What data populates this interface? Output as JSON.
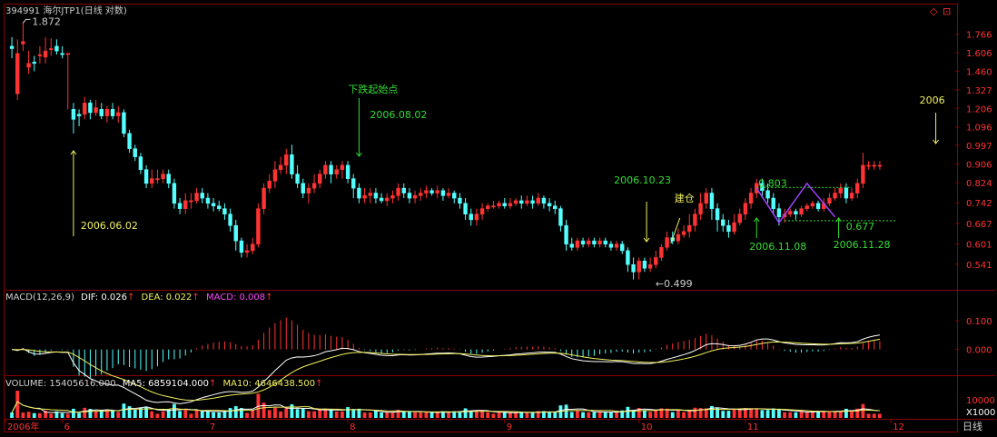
{
  "chart_data": [
    {
      "type": "candlestick",
      "title": "394991 海尔JTP1(日线 对数)",
      "y_scale": "log",
      "ylim": [
        0.49,
        1.9
      ],
      "y_ticks": [
        "1.766",
        "1.606",
        "1.460",
        "1.327",
        "1.206",
        "1.096",
        "0.997",
        "0.906",
        "0.824",
        "0.742",
        "0.667",
        "0.601",
        "0.541"
      ],
      "y_tick_values": [
        1.766,
        1.606,
        1.46,
        1.327,
        1.206,
        1.096,
        0.997,
        0.906,
        0.824,
        0.742,
        0.667,
        0.601,
        0.541
      ],
      "x_labels": [
        "2006年",
        "6",
        "7",
        "8",
        "9",
        "10",
        "11",
        "12"
      ],
      "x_label_index": [
        0,
        9,
        35,
        60,
        88,
        112,
        131,
        157
      ],
      "n_bars": 168,
      "candles": [
        [
          1.66,
          1.64,
          1.74,
          1.56
        ],
        [
          1.3,
          1.6,
          1.72,
          1.26
        ],
        [
          1.68,
          1.7,
          1.88,
          1.62
        ],
        [
          1.49,
          1.52,
          1.62,
          1.44
        ],
        [
          1.53,
          1.52,
          1.58,
          1.46
        ],
        [
          1.58,
          1.59,
          1.66,
          1.52
        ],
        [
          1.57,
          1.62,
          1.74,
          1.52
        ],
        [
          1.64,
          1.64,
          1.73,
          1.58
        ],
        [
          1.66,
          1.62,
          1.72,
          1.59
        ],
        [
          1.6,
          1.59,
          1.66,
          1.56
        ],
        [
          1.6,
          1.6,
          1.6,
          1.2
        ],
        [
          1.2,
          1.14,
          1.24,
          1.06
        ],
        [
          1.17,
          1.16,
          1.2,
          1.1
        ],
        [
          1.17,
          1.24,
          1.28,
          1.14
        ],
        [
          1.24,
          1.18,
          1.26,
          1.14
        ],
        [
          1.18,
          1.21,
          1.26,
          1.16
        ],
        [
          1.2,
          1.16,
          1.24,
          1.14
        ],
        [
          1.16,
          1.2,
          1.22,
          1.12
        ],
        [
          1.2,
          1.16,
          1.24,
          1.14
        ],
        [
          1.16,
          1.18,
          1.22,
          1.12
        ],
        [
          1.18,
          1.06,
          1.2,
          1.04
        ],
        [
          1.06,
          0.98,
          1.08,
          0.96
        ],
        [
          0.98,
          0.94,
          1.0,
          0.92
        ],
        [
          0.94,
          0.88,
          0.96,
          0.86
        ],
        [
          0.88,
          0.82,
          0.9,
          0.8
        ],
        [
          0.82,
          0.84,
          0.88,
          0.8
        ],
        [
          0.84,
          0.84,
          0.88,
          0.82
        ],
        [
          0.84,
          0.86,
          0.88,
          0.82
        ],
        [
          0.86,
          0.82,
          0.88,
          0.8
        ],
        [
          0.82,
          0.74,
          0.84,
          0.72
        ],
        [
          0.74,
          0.72,
          0.76,
          0.7
        ],
        [
          0.72,
          0.75,
          0.78,
          0.7
        ],
        [
          0.75,
          0.75,
          0.78,
          0.72
        ],
        [
          0.75,
          0.78,
          0.8,
          0.74
        ],
        [
          0.78,
          0.76,
          0.8,
          0.74
        ],
        [
          0.76,
          0.74,
          0.78,
          0.72
        ],
        [
          0.74,
          0.73,
          0.76,
          0.71
        ],
        [
          0.73,
          0.72,
          0.75,
          0.71
        ],
        [
          0.72,
          0.7,
          0.74,
          0.68
        ],
        [
          0.7,
          0.66,
          0.72,
          0.64
        ],
        [
          0.66,
          0.61,
          0.68,
          0.58
        ],
        [
          0.61,
          0.575,
          0.62,
          0.56
        ],
        [
          0.575,
          0.58,
          0.6,
          0.56
        ],
        [
          0.58,
          0.6,
          0.62,
          0.57
        ],
        [
          0.6,
          0.72,
          0.74,
          0.59
        ],
        [
          0.72,
          0.8,
          0.82,
          0.7
        ],
        [
          0.8,
          0.83,
          0.86,
          0.78
        ],
        [
          0.83,
          0.88,
          0.92,
          0.8
        ],
        [
          0.88,
          0.9,
          0.94,
          0.86
        ],
        [
          0.9,
          0.95,
          0.98,
          0.86
        ],
        [
          0.95,
          0.86,
          1.0,
          0.84
        ],
        [
          0.86,
          0.82,
          0.9,
          0.8
        ],
        [
          0.82,
          0.78,
          0.84,
          0.76
        ],
        [
          0.78,
          0.8,
          0.82,
          0.74
        ],
        [
          0.8,
          0.82,
          0.86,
          0.78
        ],
        [
          0.82,
          0.86,
          0.88,
          0.8
        ],
        [
          0.86,
          0.9,
          0.92,
          0.84
        ],
        [
          0.9,
          0.86,
          0.92,
          0.82
        ],
        [
          0.86,
          0.88,
          0.9,
          0.84
        ],
        [
          0.88,
          0.9,
          0.92,
          0.84
        ],
        [
          0.9,
          0.84,
          0.92,
          0.82
        ],
        [
          0.84,
          0.8,
          0.86,
          0.76
        ],
        [
          0.8,
          0.76,
          0.82,
          0.74
        ],
        [
          0.76,
          0.77,
          0.8,
          0.74
        ],
        [
          0.77,
          0.78,
          0.8,
          0.74
        ],
        [
          0.78,
          0.76,
          0.8,
          0.74
        ],
        [
          0.76,
          0.75,
          0.78,
          0.74
        ],
        [
          0.75,
          0.76,
          0.78,
          0.73
        ],
        [
          0.76,
          0.77,
          0.79,
          0.74
        ],
        [
          0.77,
          0.8,
          0.82,
          0.75
        ],
        [
          0.8,
          0.78,
          0.82,
          0.76
        ],
        [
          0.78,
          0.76,
          0.8,
          0.74
        ],
        [
          0.76,
          0.77,
          0.79,
          0.74
        ],
        [
          0.77,
          0.78,
          0.8,
          0.75
        ],
        [
          0.78,
          0.79,
          0.81,
          0.76
        ],
        [
          0.79,
          0.78,
          0.8,
          0.77
        ],
        [
          0.78,
          0.79,
          0.81,
          0.76
        ],
        [
          0.79,
          0.77,
          0.8,
          0.75
        ],
        [
          0.77,
          0.78,
          0.8,
          0.76
        ],
        [
          0.78,
          0.76,
          0.79,
          0.74
        ],
        [
          0.76,
          0.74,
          0.78,
          0.72
        ],
        [
          0.74,
          0.7,
          0.76,
          0.68
        ],
        [
          0.7,
          0.68,
          0.72,
          0.66
        ],
        [
          0.68,
          0.7,
          0.72,
          0.66
        ],
        [
          0.7,
          0.72,
          0.74,
          0.68
        ],
        [
          0.72,
          0.73,
          0.74,
          0.71
        ],
        [
          0.73,
          0.73,
          0.75,
          0.72
        ],
        [
          0.73,
          0.74,
          0.75,
          0.72
        ],
        [
          0.74,
          0.73,
          0.76,
          0.72
        ],
        [
          0.73,
          0.74,
          0.76,
          0.72
        ],
        [
          0.74,
          0.75,
          0.76,
          0.73
        ],
        [
          0.75,
          0.74,
          0.77,
          0.72
        ],
        [
          0.74,
          0.75,
          0.77,
          0.73
        ],
        [
          0.75,
          0.74,
          0.77,
          0.72
        ],
        [
          0.74,
          0.76,
          0.78,
          0.73
        ],
        [
          0.76,
          0.74,
          0.77,
          0.72
        ],
        [
          0.74,
          0.73,
          0.76,
          0.71
        ],
        [
          0.73,
          0.72,
          0.75,
          0.7
        ],
        [
          0.72,
          0.66,
          0.73,
          0.64
        ],
        [
          0.66,
          0.6,
          0.68,
          0.58
        ],
        [
          0.6,
          0.59,
          0.62,
          0.58
        ],
        [
          0.59,
          0.61,
          0.62,
          0.58
        ],
        [
          0.61,
          0.6,
          0.62,
          0.59
        ],
        [
          0.6,
          0.61,
          0.62,
          0.59
        ],
        [
          0.61,
          0.6,
          0.62,
          0.59
        ],
        [
          0.6,
          0.61,
          0.62,
          0.59
        ],
        [
          0.61,
          0.6,
          0.62,
          0.59
        ],
        [
          0.6,
          0.59,
          0.61,
          0.58
        ],
        [
          0.59,
          0.6,
          0.61,
          0.58
        ],
        [
          0.6,
          0.58,
          0.61,
          0.57
        ],
        [
          0.58,
          0.54,
          0.59,
          0.52
        ],
        [
          0.54,
          0.52,
          0.56,
          0.5
        ],
        [
          0.52,
          0.55,
          0.56,
          0.5
        ],
        [
          0.55,
          0.53,
          0.56,
          0.52
        ],
        [
          0.53,
          0.54,
          0.56,
          0.52
        ],
        [
          0.54,
          0.56,
          0.58,
          0.53
        ],
        [
          0.56,
          0.59,
          0.6,
          0.55
        ],
        [
          0.59,
          0.62,
          0.64,
          0.58
        ],
        [
          0.62,
          0.61,
          0.64,
          0.6
        ],
        [
          0.61,
          0.63,
          0.65,
          0.6
        ],
        [
          0.63,
          0.64,
          0.66,
          0.62
        ],
        [
          0.64,
          0.66,
          0.7,
          0.62
        ],
        [
          0.66,
          0.7,
          0.72,
          0.64
        ],
        [
          0.7,
          0.74,
          0.78,
          0.68
        ],
        [
          0.74,
          0.78,
          0.8,
          0.72
        ],
        [
          0.78,
          0.72,
          0.8,
          0.68
        ],
        [
          0.72,
          0.68,
          0.74,
          0.64
        ],
        [
          0.68,
          0.66,
          0.7,
          0.64
        ],
        [
          0.66,
          0.64,
          0.68,
          0.62
        ],
        [
          0.64,
          0.67,
          0.7,
          0.63
        ],
        [
          0.67,
          0.7,
          0.72,
          0.66
        ],
        [
          0.7,
          0.74,
          0.76,
          0.68
        ],
        [
          0.74,
          0.78,
          0.8,
          0.72
        ],
        [
          0.78,
          0.82,
          0.84,
          0.76
        ],
        [
          0.82,
          0.79,
          0.84,
          0.76
        ],
        [
          0.79,
          0.76,
          0.82,
          0.74
        ],
        [
          0.76,
          0.72,
          0.78,
          0.7
        ],
        [
          0.72,
          0.69,
          0.74,
          0.66
        ],
        [
          0.69,
          0.7,
          0.72,
          0.67
        ],
        [
          0.7,
          0.71,
          0.72,
          0.69
        ],
        [
          0.71,
          0.7,
          0.72,
          0.68
        ],
        [
          0.7,
          0.72,
          0.73,
          0.69
        ],
        [
          0.72,
          0.73,
          0.74,
          0.71
        ],
        [
          0.73,
          0.74,
          0.75,
          0.72
        ],
        [
          0.74,
          0.72,
          0.75,
          0.71
        ],
        [
          0.72,
          0.74,
          0.76,
          0.71
        ],
        [
          0.74,
          0.76,
          0.78,
          0.73
        ],
        [
          0.76,
          0.78,
          0.8,
          0.75
        ],
        [
          0.78,
          0.8,
          0.82,
          0.76
        ],
        [
          0.8,
          0.76,
          0.82,
          0.74
        ],
        [
          0.76,
          0.78,
          0.8,
          0.75
        ],
        [
          0.78,
          0.82,
          0.84,
          0.76
        ],
        [
          0.82,
          0.9,
          0.96,
          0.8
        ],
        [
          0.9,
          0.9,
          0.92,
          0.88
        ],
        [
          0.9,
          0.9,
          0.92,
          0.88
        ],
        [
          0.9,
          0.9,
          0.92,
          0.88
        ]
      ],
      "hline_upper": {
        "label": "0.803",
        "value": 0.803
      },
      "hline_lower": {
        "label": "0.677",
        "value": 0.677
      },
      "max_label": "1.872",
      "min_label": "0.499",
      "annotations": {
        "june_date": "2006.06.02",
        "aug_title": "下跌起始点",
        "aug_date": "2006.08.02",
        "oct_date": "2006.10.23",
        "jiancang": "建仓",
        "nov_08": "2006.11.08",
        "nov_28": "2006.11.28",
        "dec_label": "2006"
      }
    },
    {
      "type": "macd",
      "params": "MACD(12,26,9)",
      "dif_label": "DIF: 0.026",
      "dea_label": "DEA: 0.022",
      "macd_label": "MACD: 0.008",
      "ylim": [
        -0.08,
        0.16
      ],
      "y_ticks": [
        "0.100",
        "0.000"
      ],
      "y_tick_values": [
        0.1,
        0.0
      ]
    },
    {
      "type": "volume",
      "volume_label": "VOLUME: 15405616.000",
      "ma5_label": "MA5: 6859104.000",
      "ma10_label": "MA10: 4646438.500",
      "y_ticks": [
        "10000"
      ],
      "unit": "X1000"
    }
  ],
  "period_label": "日线",
  "colors": {
    "up": "#ff3333",
    "down": "#54ffff",
    "grid": "#8b0000",
    "axis_text": "#ff3333",
    "note_green": "#33dd33",
    "note_yellow": "#f0f060",
    "dif": "#ffffff",
    "dea": "#f0f060",
    "macd": "#ff44ff"
  }
}
